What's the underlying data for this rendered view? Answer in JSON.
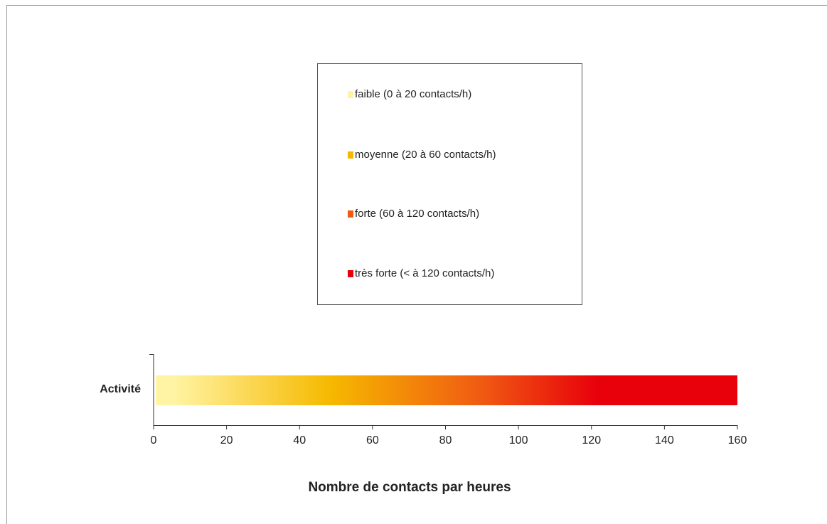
{
  "chart_data": {
    "type": "bar",
    "orientation": "horizontal",
    "categories": [
      "Activité"
    ],
    "values": [
      160
    ],
    "xlim": [
      0,
      160
    ],
    "xticks": [
      0,
      20,
      40,
      60,
      80,
      100,
      120,
      140,
      160
    ],
    "xlabel": "Nombre de contacts par heures",
    "legend": [
      {
        "name": "faible (0 à 20 contacts/h)",
        "color": "#fff4a3"
      },
      {
        "name": "moyenne (20 à 60 contacts/h)",
        "color": "#f6b900"
      },
      {
        "name": "forte (60 à 120 contacts/h)",
        "color": "#f05a12"
      },
      {
        "name": "très forte (< à 120 contacts/h)",
        "color": "#e8000b"
      }
    ]
  }
}
